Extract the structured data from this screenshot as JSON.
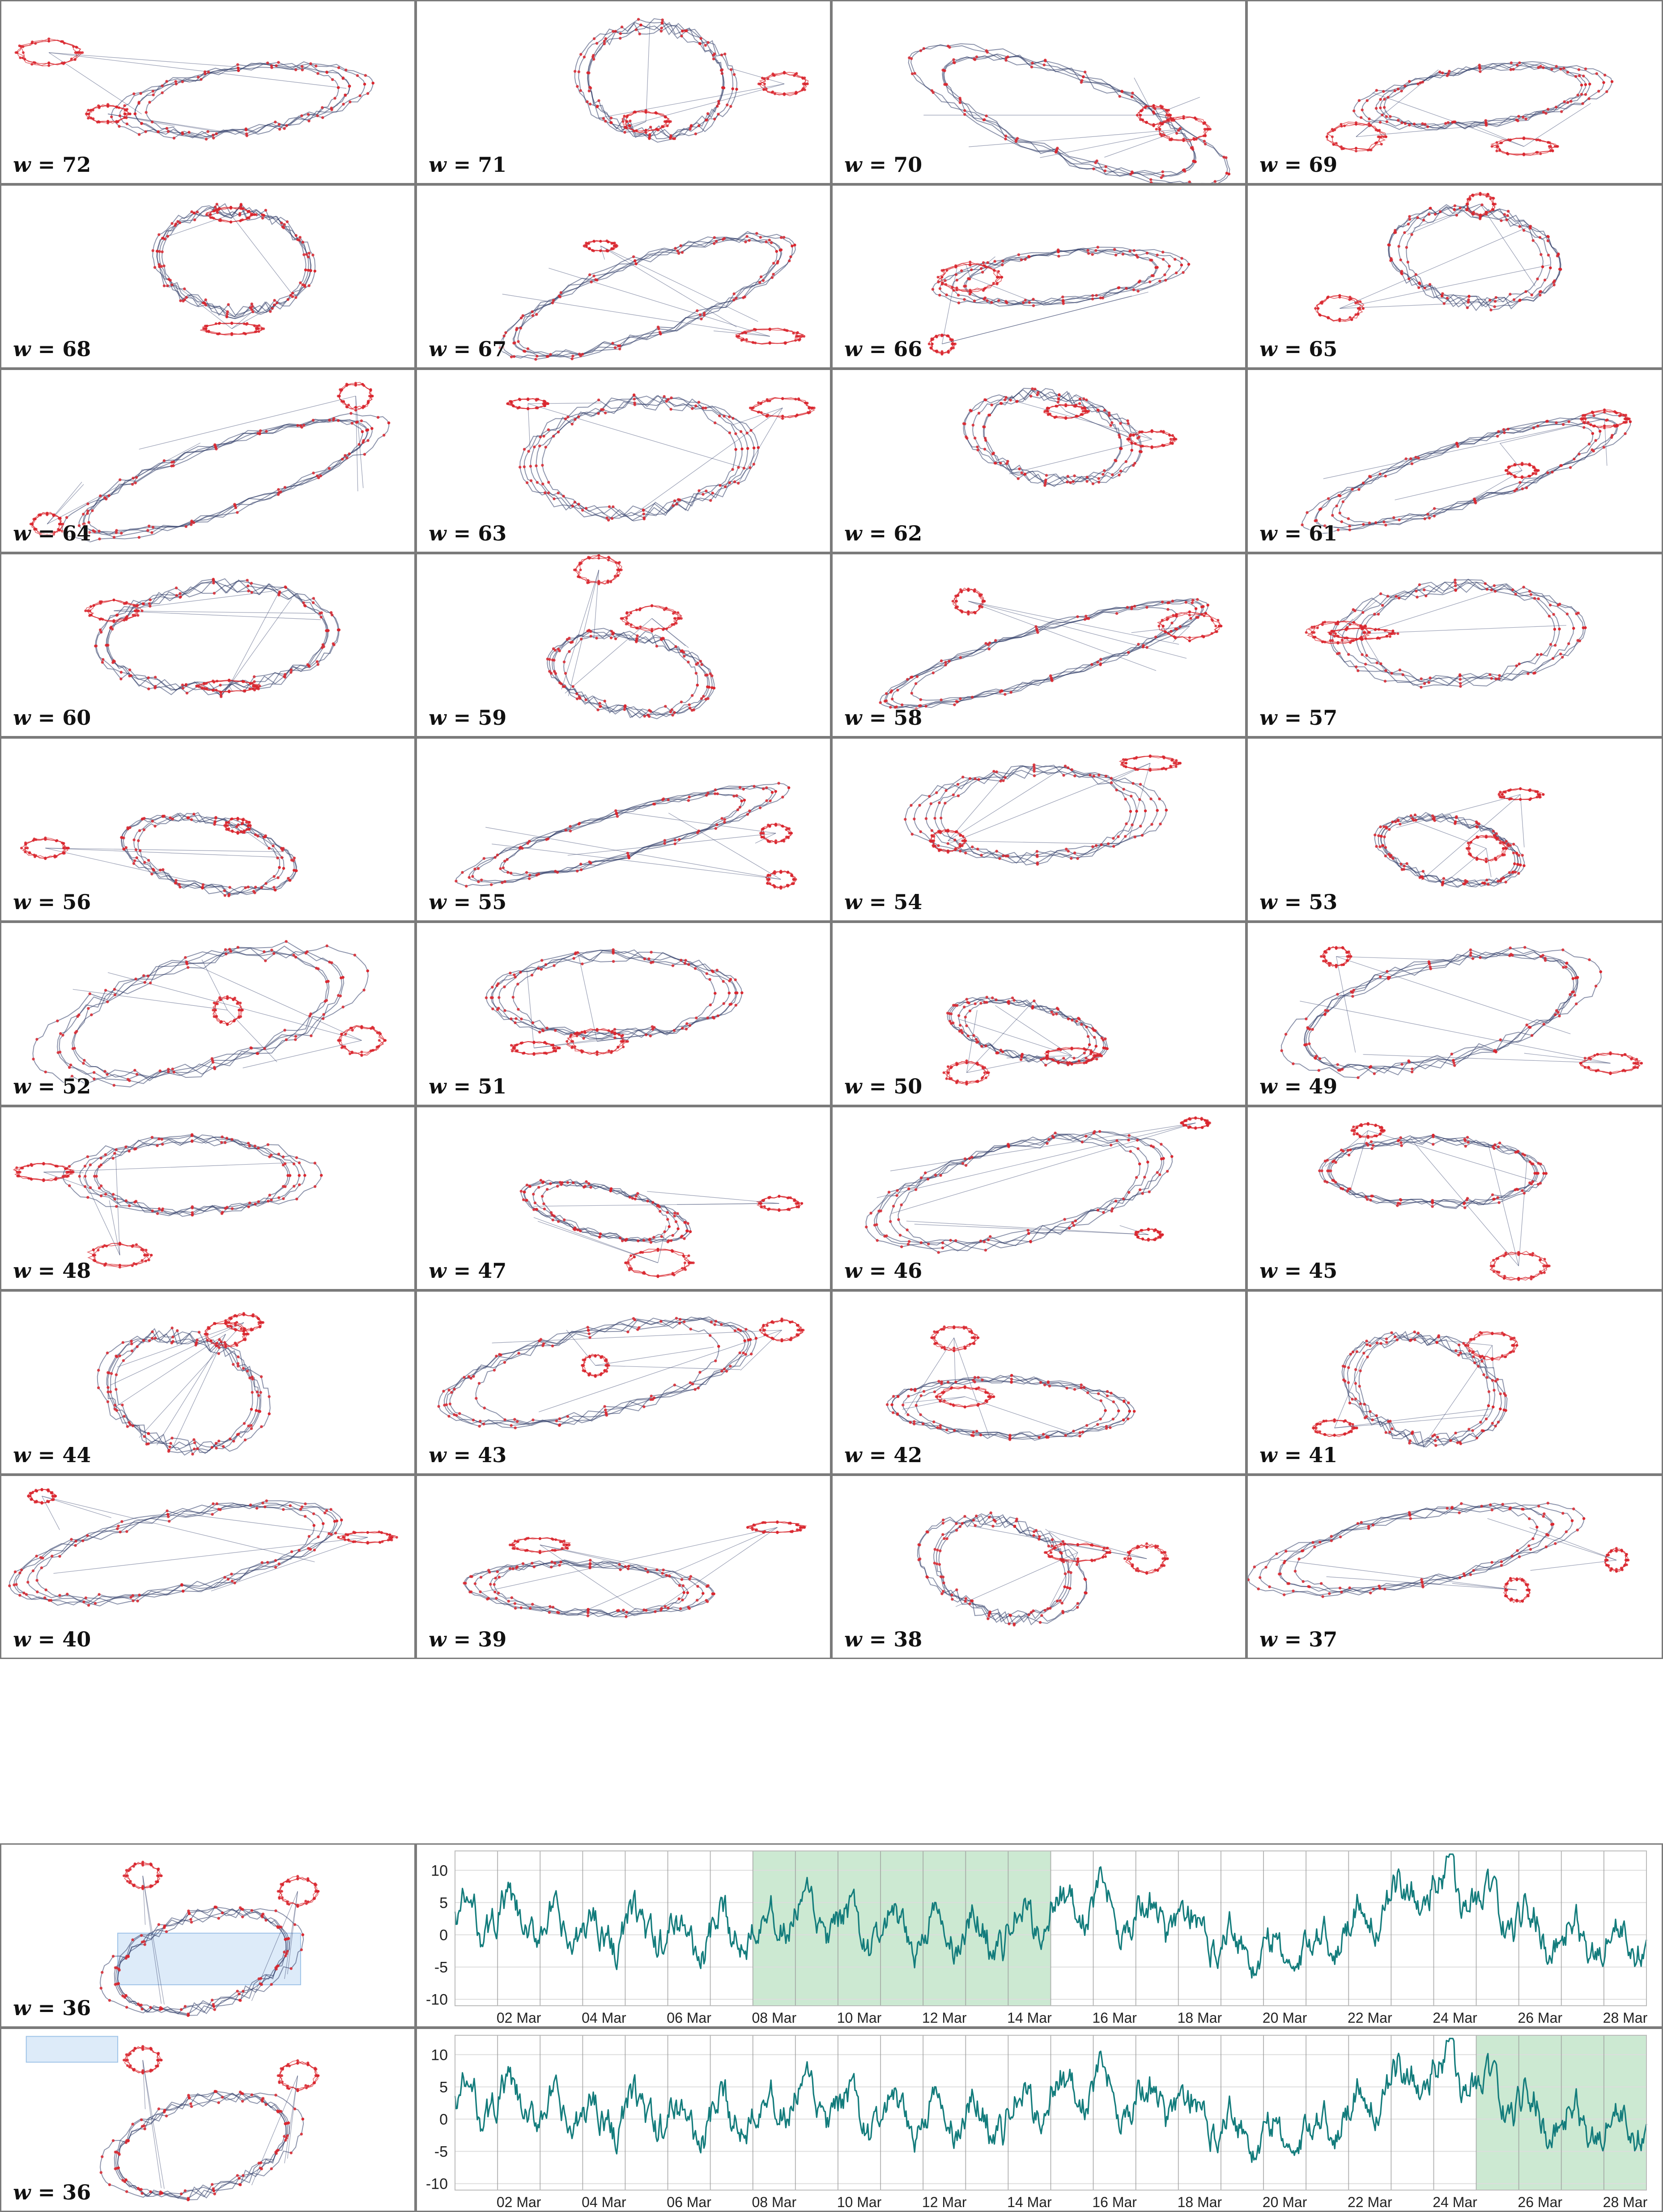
{
  "figure": {
    "window_panels": [
      {
        "w": "72"
      },
      {
        "w": "71"
      },
      {
        "w": "70"
      },
      {
        "w": "69"
      },
      {
        "w": "68"
      },
      {
        "w": "67"
      },
      {
        "w": "66"
      },
      {
        "w": "65"
      },
      {
        "w": "64"
      },
      {
        "w": "63"
      },
      {
        "w": "62"
      },
      {
        "w": "61"
      },
      {
        "w": "60"
      },
      {
        "w": "59"
      },
      {
        "w": "58"
      },
      {
        "w": "57"
      },
      {
        "w": "56"
      },
      {
        "w": "55"
      },
      {
        "w": "54"
      },
      {
        "w": "53"
      },
      {
        "w": "52"
      },
      {
        "w": "51"
      },
      {
        "w": "50"
      },
      {
        "w": "49"
      },
      {
        "w": "48"
      },
      {
        "w": "47"
      },
      {
        "w": "46"
      },
      {
        "w": "45"
      },
      {
        "w": "44"
      },
      {
        "w": "43"
      },
      {
        "w": "42"
      },
      {
        "w": "41"
      },
      {
        "w": "40"
      },
      {
        "w": "39"
      },
      {
        "w": "38"
      },
      {
        "w": "37"
      }
    ],
    "label_prefix": "w",
    "label_equals": " = ",
    "bottom_rows": [
      {
        "w": "36",
        "highlight_region": "inner-loop",
        "highlight_dates": [
          "08 Mar",
          "15 Mar"
        ]
      },
      {
        "w": "36",
        "highlight_region": "top-left-cluster",
        "highlight_dates": [
          "25 Mar",
          "29 Mar"
        ]
      }
    ]
  },
  "colors": {
    "points": "#d9262e",
    "edges": "#2d3a66",
    "series": "#137c7c",
    "highlight": "#c9e8d0",
    "region_box": "#cfe3f7",
    "grid": "#dddddd",
    "vline": "#999999"
  },
  "chart_data": {
    "type": "line",
    "x_tick_labels": [
      "02 Mar",
      "04 Mar",
      "06 Mar",
      "08 Mar",
      "10 Mar",
      "12 Mar",
      "14 Mar",
      "16 Mar",
      "18 Mar",
      "20 Mar",
      "22 Mar",
      "24 Mar",
      "26 Mar",
      "28 Mar"
    ],
    "y_tick_labels": [
      "10",
      "5",
      "0",
      "-5",
      "-10"
    ],
    "ylim": [
      -11,
      13
    ],
    "xlim_days": [
      "01 Mar",
      "29 Mar"
    ],
    "grid": true,
    "series": [
      {
        "daily_mean": [
          2,
          3,
          1,
          0,
          1,
          0,
          -1,
          2,
          3,
          1,
          0,
          0,
          0,
          0,
          4,
          5,
          3,
          2,
          0,
          -3,
          -3,
          2,
          5,
          8,
          6,
          2,
          0,
          -1,
          0
        ]
      }
    ]
  }
}
